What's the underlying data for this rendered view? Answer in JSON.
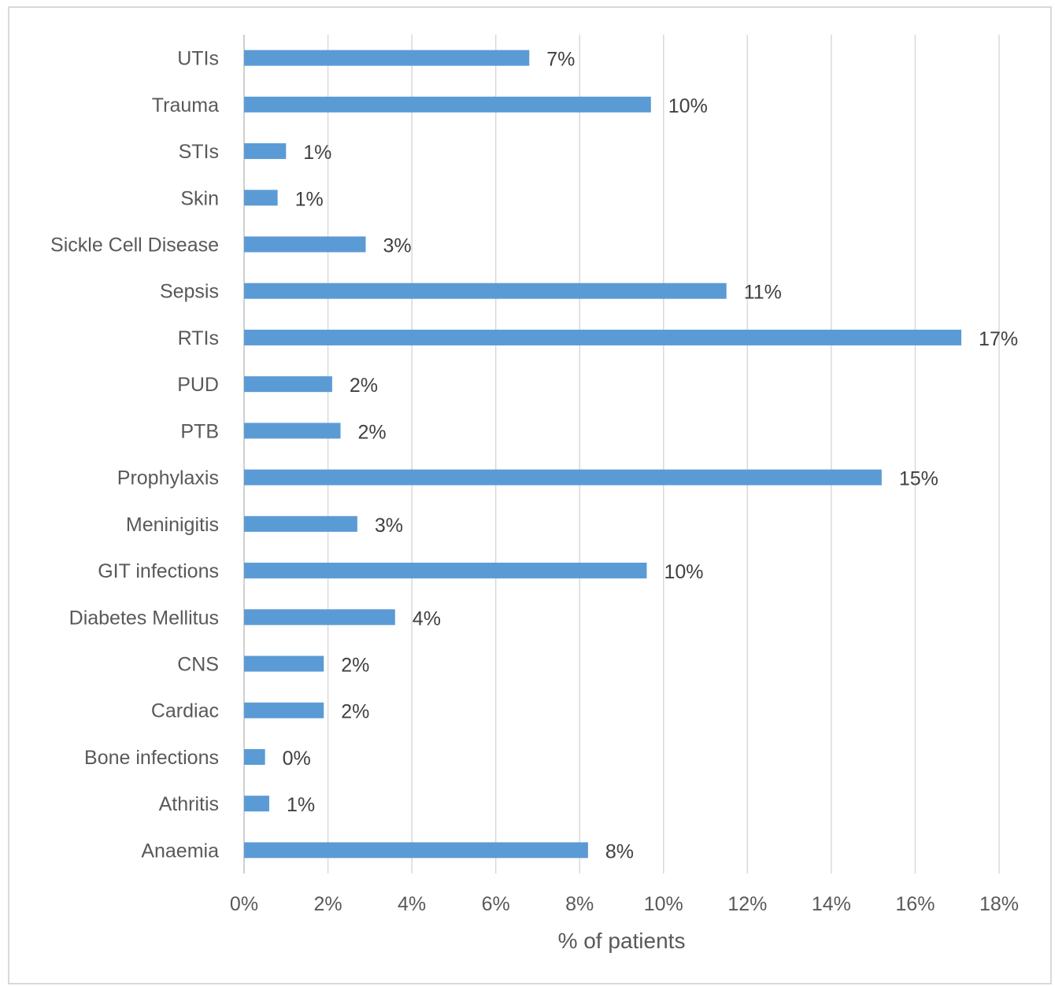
{
  "chart_data": {
    "type": "bar",
    "orientation": "horizontal",
    "categories": [
      "UTIs",
      "Trauma",
      "STIs",
      "Skin",
      "Sickle Cell Disease",
      "Sepsis",
      "RTIs",
      "PUD",
      "PTB",
      "Prophylaxis",
      "Meninigitis",
      "GIT infections",
      "Diabetes Mellitus",
      "CNS",
      "Cardiac",
      "Bone infections",
      "Athritis",
      "Anaemia"
    ],
    "values": [
      6.8,
      9.7,
      1.0,
      0.8,
      2.9,
      11.5,
      17.1,
      2.1,
      2.3,
      15.2,
      2.7,
      9.6,
      3.6,
      1.9,
      1.9,
      0.5,
      0.6,
      8.2
    ],
    "value_labels": [
      "7%",
      "10%",
      "1%",
      "1%",
      "3%",
      "11%",
      "17%",
      "2%",
      "2%",
      "15%",
      "3%",
      "10%",
      "4%",
      "2%",
      "2%",
      "0%",
      "1%",
      "8%"
    ],
    "x_ticks": [
      "0%",
      "2%",
      "4%",
      "6%",
      "8%",
      "10%",
      "12%",
      "14%",
      "16%",
      "18%"
    ],
    "xlim": [
      0,
      18
    ],
    "xlabel": "% of patients",
    "ylabel": "",
    "title": "",
    "grid": "vertical",
    "bar_color": "#5b9bd5"
  }
}
